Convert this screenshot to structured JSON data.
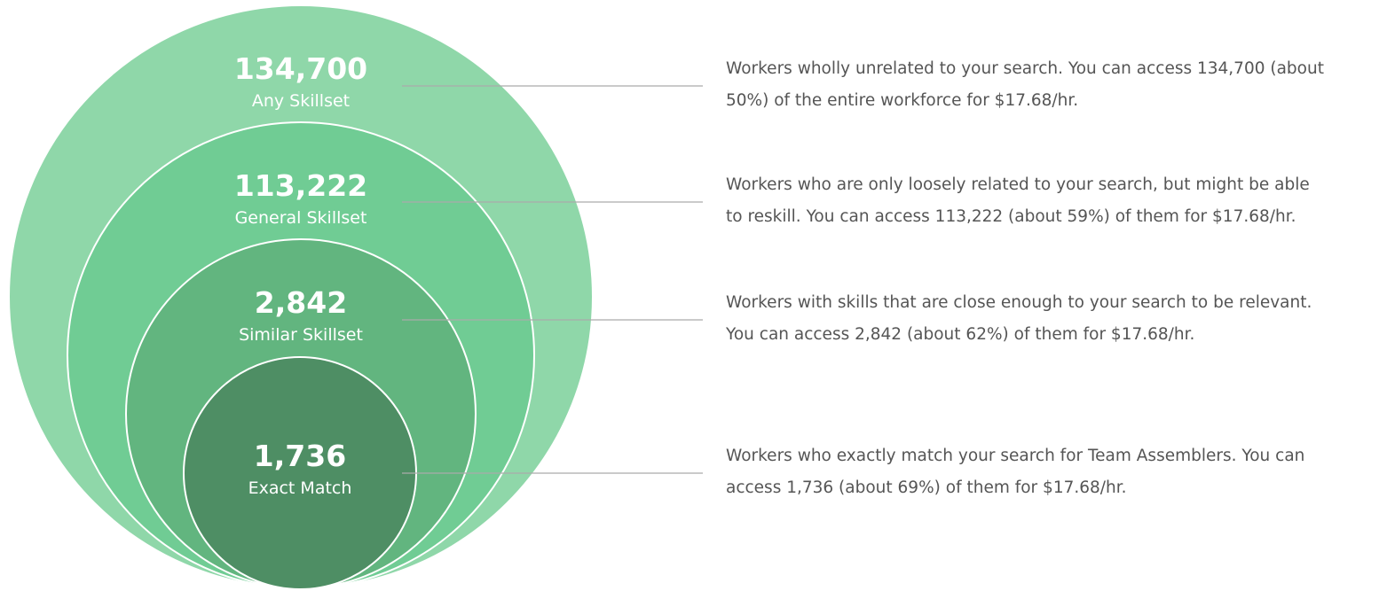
{
  "levels": [
    {
      "count": "134,700",
      "label": "Any Skillset",
      "description": [
        "Workers wholly unrelated to your search. You can access 134,700 (about",
        "50%) of the entire workforce for $17.68/hr."
      ]
    },
    {
      "count": "113,222",
      "label": "General Skillset",
      "description": [
        "Workers who are only loosely related to your search, but might be able",
        "to reskill. You can access 113,222 (about 59%) of them for $17.68/hr."
      ]
    },
    {
      "count": "2,842",
      "label": "Similar Skillset",
      "description": [
        "Workers with skills that are close enough to your search to be relevant.",
        "You can access 2,842 (about 62%) of them for $17.68/hr."
      ]
    },
    {
      "count": "1,736",
      "label": "Exact Match",
      "description": [
        "Workers who exactly match your search for Team Assemblers. You can",
        "access 1,736 (about 69%) of them for $17.68/hr."
      ]
    }
  ]
}
